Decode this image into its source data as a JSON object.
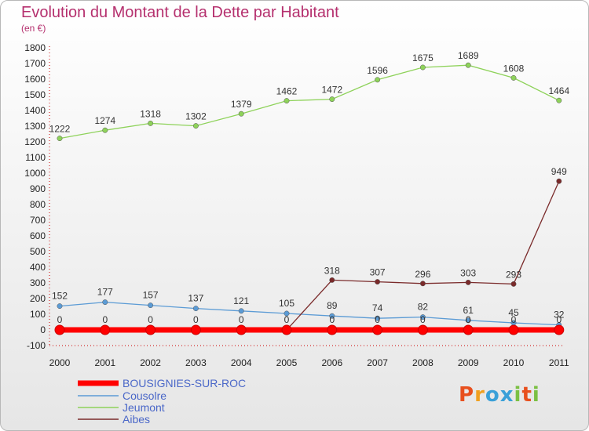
{
  "chart_data": {
    "type": "line",
    "title": "Evolution du Montant de la Dette par Habitant",
    "subtitle": "(en €)",
    "x": [
      "2000",
      "2001",
      "2002",
      "2003",
      "2004",
      "2005",
      "2006",
      "2007",
      "2008",
      "2009",
      "2010",
      "2011"
    ],
    "ylim": [
      -100,
      1800
    ],
    "yticks": [
      -100,
      0,
      100,
      200,
      300,
      400,
      500,
      600,
      700,
      800,
      900,
      1000,
      1100,
      1200,
      1300,
      1400,
      1500,
      1600,
      1700,
      1800
    ],
    "grid": false,
    "legend_position": "bottom-left",
    "series": [
      {
        "name": "BOUSIGNIES-SUR-ROC",
        "color": "#ff0000",
        "values": [
          0,
          0,
          0,
          0,
          0,
          0,
          0,
          0,
          0,
          0,
          0,
          0
        ]
      },
      {
        "name": "Cousolre",
        "color": "#5b9bd5",
        "values": [
          152,
          177,
          157,
          137,
          121,
          105,
          89,
          74,
          82,
          61,
          45,
          32
        ]
      },
      {
        "name": "Jeumont",
        "color": "#8ed25a",
        "values": [
          1222,
          1274,
          1318,
          1302,
          1379,
          1462,
          1472,
          1596,
          1675,
          1689,
          1608,
          1464
        ]
      },
      {
        "name": "Aibes",
        "color": "#7a2a2a",
        "values": [
          0,
          0,
          0,
          0,
          0,
          0,
          318,
          307,
          296,
          303,
          293,
          949
        ]
      }
    ]
  },
  "logo": {
    "letters": [
      "P",
      "r",
      "o",
      "x",
      "i",
      "t",
      "i"
    ],
    "colors": [
      "#e8501e",
      "#f0a020",
      "#3aa0d8",
      "#3aa0d8",
      "#7bc043",
      "#e8501e",
      "#7bc043"
    ]
  }
}
